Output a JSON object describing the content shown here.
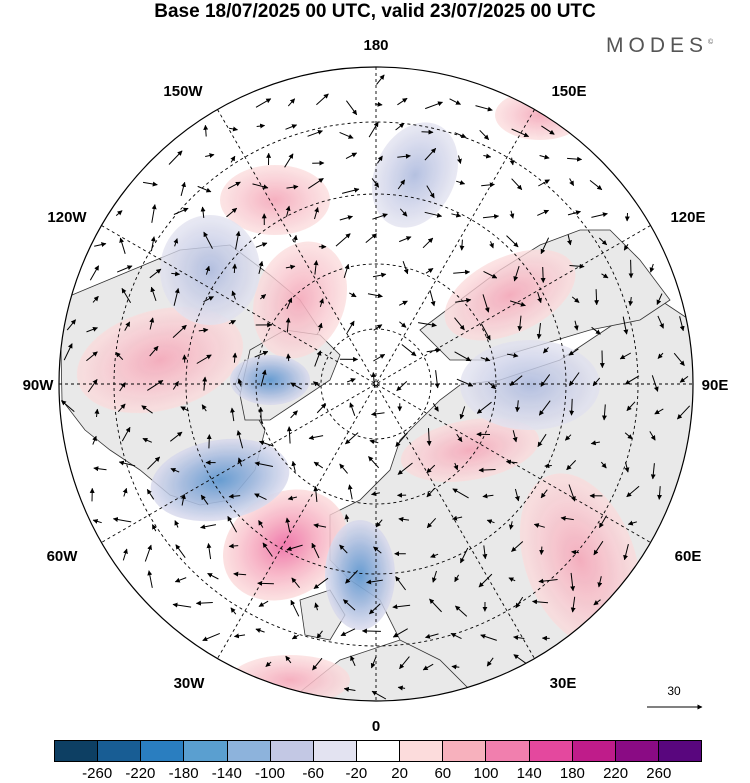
{
  "title": "Base 18/07/2025 00 UTC, valid 23/07/2025 00 UTC",
  "brand": "MODES",
  "brand_mark": "©",
  "longitude_labels": {
    "top": "180",
    "bottom": "0",
    "left": "90W",
    "right": "90E",
    "upper_left_1": "150W",
    "upper_left_2": "120W",
    "upper_right_1": "150E",
    "upper_right_2": "120E",
    "lower_left_1": "60W",
    "lower_left_2": "30W",
    "lower_right_1": "60E",
    "lower_right_2": "30E"
  },
  "vector_scale_label": "30",
  "colorbar": {
    "colors": [
      "#0d3f63",
      "#185d94",
      "#2a7ec0",
      "#5a9fd0",
      "#8db3dc",
      "#c3c8e4",
      "#e3e3f1",
      "#ffffff",
      "#fcdcdc",
      "#f7b1bd",
      "#f17fae",
      "#e4489e",
      "#bf1c8a",
      "#8a0b84",
      "#59067e"
    ],
    "ticks": [
      "-260",
      "-220",
      "-180",
      "-140",
      "-100",
      "-60",
      "-20",
      "20",
      "60",
      "100",
      "140",
      "180",
      "220",
      "260"
    ]
  },
  "anomaly_field": {
    "units": "colorbar units",
    "land_fill": "#e8e8e8",
    "positive_centres": [
      {
        "lon": -40,
        "lat": 55,
        "value": 160
      },
      {
        "lon": -90,
        "lat": 57,
        "value": 80
      },
      {
        "lon": 110,
        "lat": 55,
        "value": 70
      },
      {
        "lon": 50,
        "lat": 35,
        "value": 50
      },
      {
        "lon": -60,
        "lat": 75,
        "value": 50
      },
      {
        "lon": 175,
        "lat": 50,
        "value": 40
      }
    ],
    "negative_centres": [
      {
        "lon": -10,
        "lat": 45,
        "value": -110
      },
      {
        "lon": -65,
        "lat": 50,
        "value": -100
      },
      {
        "lon": -125,
        "lat": 55,
        "value": -70
      },
      {
        "lon": 80,
        "lat": 60,
        "value": -70
      },
      {
        "lon": 160,
        "lat": 65,
        "value": -50
      }
    ]
  }
}
